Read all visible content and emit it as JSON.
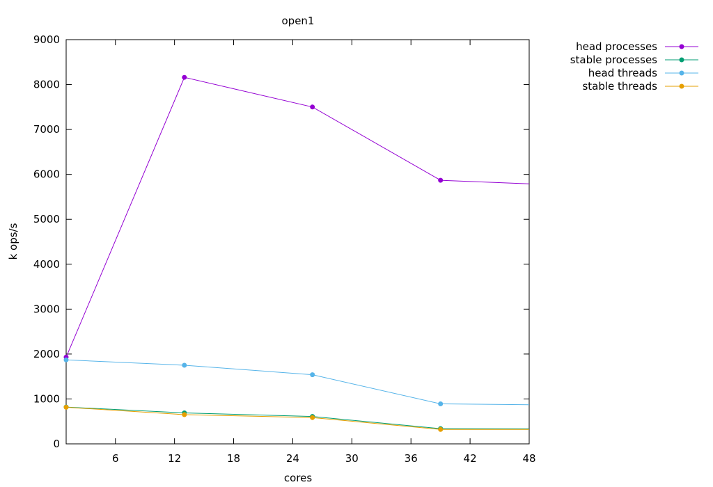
{
  "chart_data": {
    "type": "line",
    "title": "open1",
    "xlabel": "cores",
    "ylabel": "k ops/s",
    "xlim": [
      1,
      48
    ],
    "ylim": [
      0,
      9000
    ],
    "x_ticks": [
      6,
      12,
      18,
      24,
      30,
      36,
      42,
      48
    ],
    "y_ticks": [
      0,
      1000,
      2000,
      3000,
      4000,
      5000,
      6000,
      7000,
      8000,
      9000
    ],
    "legend_position": "top-right outside plot",
    "grid": false,
    "x": [
      1,
      13,
      26,
      39,
      48
    ],
    "series": [
      {
        "name": "head processes",
        "color": "#9400d3",
        "values": [
          1930,
          8160,
          7500,
          5870,
          5790
        ]
      },
      {
        "name": "stable processes",
        "color": "#009e73",
        "values": [
          820,
          690,
          610,
          340,
          335
        ]
      },
      {
        "name": "head threads",
        "color": "#56b4e9",
        "values": [
          1870,
          1750,
          1540,
          890,
          870
        ]
      },
      {
        "name": "stable threads",
        "color": "#e69f00",
        "values": [
          815,
          650,
          585,
          320,
          320
        ]
      }
    ]
  }
}
